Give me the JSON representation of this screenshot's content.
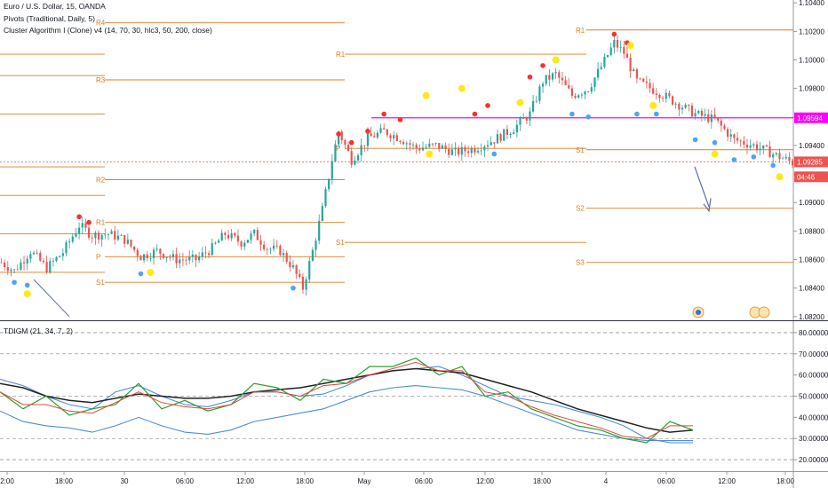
{
  "header": {
    "symbol_line": "Euro / U.S. Dollar, 15, OANDA",
    "pivots_line": "Pivots (Traditional, Daily, 5)",
    "cluster_line": "Cluster Algorithm I (Clone) v4 (14, 70, 30, hlc3, 50, 200, close)"
  },
  "lower_pane": {
    "label": "TDIGM (21, 34, 7, 2)"
  },
  "colors": {
    "up": "#26a69a",
    "down": "#ef5350",
    "pivot": "#e07b24",
    "magenta": "#ff00ff",
    "red_dot": "#ff2d2d",
    "blue_dot": "#4fa3f7",
    "yellow_dot": "#ffe81a",
    "band": "#4a8fd8",
    "mid": "#222222",
    "green": "#2e9e2e",
    "red_line": "#e0483c",
    "arrow": "#5b6ea8"
  },
  "chart_data": [
    {
      "type": "candlestick",
      "symbol": "Euro / U.S. Dollar",
      "timeframe": "15",
      "source": "OANDA",
      "y_axis": {
        "min": 1.0818,
        "max": 1.1042,
        "ticks": [
          1.104,
          1.102,
          1.1,
          1.098,
          1.096,
          1.094,
          1.092,
          1.09,
          1.088,
          1.086,
          1.084,
          1.082
        ],
        "tick_labels": [
          "1.10400",
          "1.10200",
          "1.10000",
          "1.09800",
          "",
          "1.09400",
          "",
          "1.09000",
          "1.08800",
          "1.08600",
          "1.08400",
          "1.08200"
        ]
      },
      "x_axis": {
        "tick_labels": [
          "2:00",
          "18:00",
          "30",
          "06:00",
          "12:00",
          "18:00",
          "May",
          "06:00",
          "12:00",
          "18:00",
          "4",
          "06:00",
          "12:00",
          "18:00"
        ]
      },
      "price_tags": [
        {
          "value": 1.09594,
          "label": "1.09594",
          "color": "#ff00ff"
        },
        {
          "value": 1.09285,
          "label": "1.09285",
          "color": "#ef5350"
        },
        {
          "value": 1.0918,
          "label": "04:46",
          "color": "#ef5350"
        }
      ],
      "close_path": [
        [
          0,
          1.0858
        ],
        [
          4,
          1.0852
        ],
        [
          9,
          1.0866
        ],
        [
          14,
          1.0854
        ],
        [
          19,
          1.0865
        ],
        [
          24,
          1.0884
        ],
        [
          28,
          1.0877
        ],
        [
          33,
          1.0878
        ],
        [
          38,
          1.0874
        ],
        [
          43,
          1.0862
        ],
        [
          48,
          1.0866
        ],
        [
          54,
          1.086
        ],
        [
          60,
          1.086
        ],
        [
          65,
          1.0868
        ],
        [
          69,
          1.0878
        ],
        [
          74,
          1.0872
        ],
        [
          78,
          1.0878
        ],
        [
          82,
          1.0868
        ],
        [
          86,
          1.0866
        ],
        [
          90,
          1.0854
        ],
        [
          93,
          1.084
        ],
        [
          96,
          1.0866
        ],
        [
          99,
          1.0895
        ],
        [
          102,
          1.093
        ],
        [
          104,
          1.095
        ],
        [
          108,
          1.093
        ],
        [
          113,
          1.0945
        ],
        [
          118,
          1.095
        ],
        [
          123,
          1.0945
        ],
        [
          128,
          1.0938
        ],
        [
          134,
          1.094
        ],
        [
          140,
          1.0935
        ],
        [
          146,
          1.0938
        ],
        [
          152,
          1.0944
        ],
        [
          158,
          1.0952
        ],
        [
          163,
          1.0962
        ],
        [
          167,
          1.0985
        ],
        [
          171,
          1.099
        ],
        [
          176,
          1.0975
        ],
        [
          181,
          1.098
        ],
        [
          185,
          1.0995
        ],
        [
          189,
          1.1012
        ],
        [
          192,
          1.1005
        ],
        [
          196,
          1.0985
        ],
        [
          202,
          1.0978
        ],
        [
          208,
          1.097
        ],
        [
          214,
          1.0962
        ],
        [
          220,
          1.0958
        ],
        [
          226,
          1.0944
        ],
        [
          232,
          1.094
        ],
        [
          238,
          1.0934
        ],
        [
          244,
          1.0928
        ]
      ],
      "pivots_day1": {
        "R4": 1.1026,
        "R3": 1.0986,
        "R2": 1.0916,
        "R1": 1.0886,
        "P": 1.0862,
        "S1": 1.0844
      },
      "pivots_day2": {
        "R1": 1.1004,
        "P": 1.0938,
        "S1": 1.0872
      },
      "pivots_day3": {
        "R1": 1.1021,
        "S1": 1.0937,
        "S2": 1.0896,
        "S3": 1.0858
      },
      "extra_levels": [
        1.1004,
        1.0989,
        1.0962,
        1.0925,
        1.0905,
        1.0878,
        1.0851
      ],
      "resistance_line": 1.09594,
      "arrow_note": "projected move down"
    },
    {
      "type": "line",
      "name": "TDIGM",
      "y_axis": {
        "min": 15,
        "max": 85,
        "ticks": [
          80,
          70,
          60,
          50,
          40,
          30,
          20
        ],
        "tick_labels": [
          "80.00000",
          "70.00000",
          "60.00000",
          "50.00000",
          "40.00000",
          "30.00000",
          "20.00000"
        ],
        "dashed_levels": [
          80,
          70,
          50,
          30,
          20
        ]
      },
      "series": [
        {
          "values": [
            58,
            55,
            50,
            46,
            44,
            52,
            55,
            50,
            46,
            45,
            48,
            52,
            52,
            50,
            51,
            55,
            60,
            62,
            63,
            64,
            60,
            55,
            50,
            48,
            46,
            43,
            40,
            36,
            30,
            28,
            28
          ]
        },
        {
          "values": [
            43,
            38,
            36,
            35,
            33,
            36,
            40,
            36,
            33,
            32,
            34,
            38,
            40,
            42,
            44,
            48,
            52,
            54,
            55,
            54,
            53,
            50,
            46,
            42,
            38,
            34,
            32,
            30,
            29,
            29,
            29
          ]
        },
        {
          "values": [
            56,
            54,
            50,
            48,
            47,
            49,
            51,
            50,
            49,
            49,
            50,
            52,
            53,
            54,
            56,
            58,
            60,
            62,
            63,
            62,
            61,
            58,
            55,
            52,
            48,
            44,
            41,
            38,
            35,
            33,
            34
          ]
        },
        {
          "values": [
            52,
            44,
            50,
            41,
            44,
            46,
            56,
            44,
            48,
            43,
            46,
            56,
            54,
            48,
            58,
            56,
            64,
            64,
            68,
            60,
            64,
            50,
            52,
            44,
            40,
            36,
            34,
            30,
            28,
            38,
            34
          ]
        },
        {
          "values": [
            52,
            46,
            46,
            43,
            42,
            47,
            52,
            47,
            45,
            44,
            46,
            52,
            52,
            50,
            55,
            56,
            60,
            63,
            66,
            62,
            62,
            52,
            50,
            45,
            41,
            38,
            35,
            31,
            30,
            36,
            36
          ]
        }
      ]
    }
  ]
}
